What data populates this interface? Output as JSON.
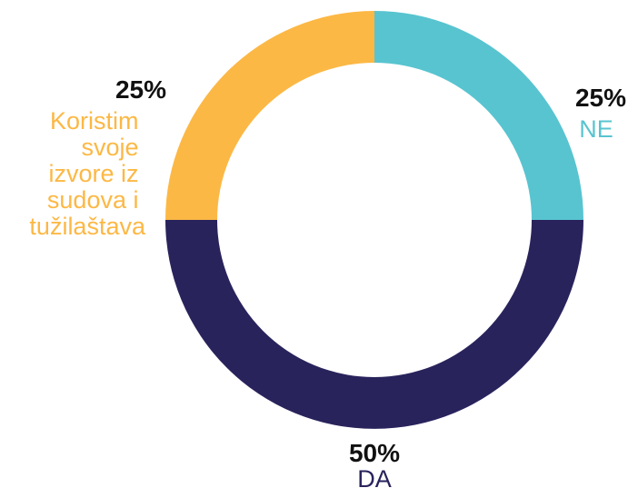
{
  "chart_data": {
    "type": "pie",
    "style": "donut",
    "slices": [
      {
        "label": "NE",
        "value": 25,
        "value_label": "25%",
        "color": "#58C4D0"
      },
      {
        "label": "DA",
        "value": 50,
        "value_label": "50%",
        "color": "#29235C"
      },
      {
        "label": "Koristim svoje izvore iz sudova i tužilaštava",
        "label_lines": [
          "Koristim",
          "svoje",
          "izvore iz",
          "sudova i",
          "tužilaštava"
        ],
        "value": 25,
        "value_label": "25%",
        "color": "#FCB845"
      }
    ],
    "start": "top",
    "direction": "clockwise",
    "legend": "none"
  }
}
